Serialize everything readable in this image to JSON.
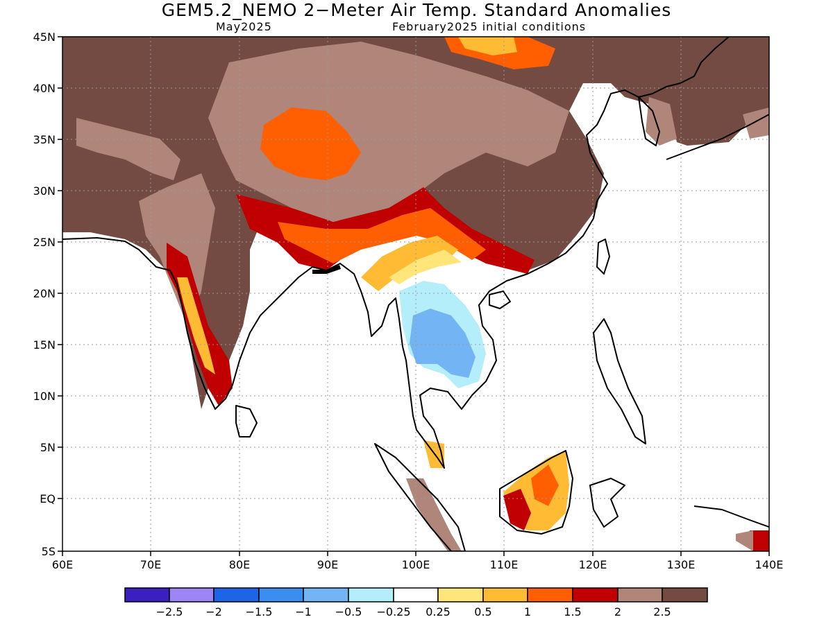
{
  "title": "GEM5.2_NEMO 2−Meter Air Temp. Standard Anomalies",
  "valid_month": "May2025",
  "initial_conditions": "February2025 initial conditions",
  "map": {
    "lat_labels": [
      "45N",
      "40N",
      "35N",
      "30N",
      "25N",
      "20N",
      "15N",
      "10N",
      "5N",
      "EQ",
      "5S"
    ],
    "lon_labels": [
      "60E",
      "70E",
      "80E",
      "90E",
      "100E",
      "110E",
      "120E",
      "130E",
      "140E"
    ],
    "lat_range": [
      -5,
      45
    ],
    "lon_range": [
      60,
      140
    ],
    "coastline_color": "#000000",
    "grid": "dotted"
  },
  "legend": {
    "colors": [
      "#3b1fbf",
      "#9d85f5",
      "#1e64e6",
      "#3a8ef0",
      "#73b4f5",
      "#b4eefa",
      "#ffffff",
      "#ffe57a",
      "#ffbb33",
      "#ff5f00",
      "#c00000",
      "#b0857a",
      "#744b42"
    ],
    "labels": [
      "−2.5",
      "−2",
      "−1.5",
      "−1",
      "−0.5",
      "−0.25",
      "0.25",
      "0.5",
      "1",
      "1.5",
      "2",
      "2.5"
    ]
  },
  "colors": {
    "very_high": "#744b42",
    "high": "#b0857a",
    "red": "#c00000",
    "orange_red": "#ff5f00",
    "orange": "#ffbb33",
    "yellow": "#ffe57a",
    "light_cyan": "#b4eefa",
    "light_blue": "#73b4f5"
  }
}
